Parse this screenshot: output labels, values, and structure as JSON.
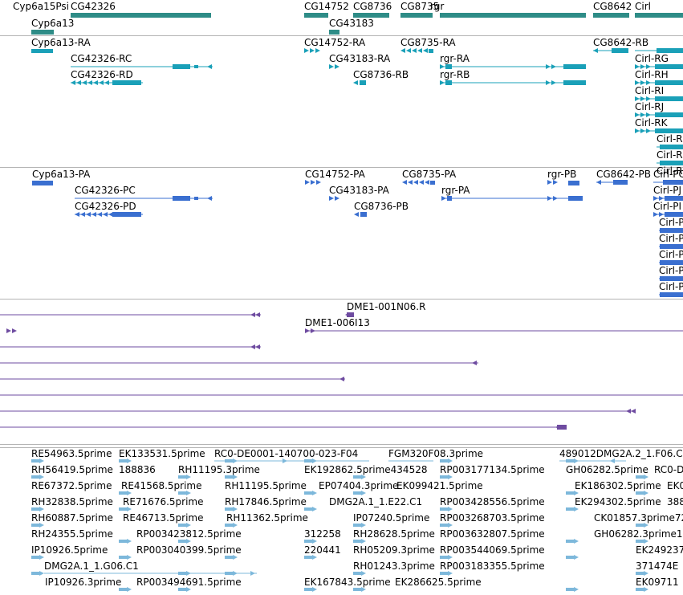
{
  "colors": {
    "gene": "#2e8c87",
    "transcript_mrna": "#1aa0b8",
    "transcript_protein": "#3a6fd0",
    "clone": "#6e4ba0",
    "est": "#7db8db",
    "separator": "#b4b4b4",
    "background": "#ffffff"
  },
  "tracks": [
    {
      "id": "genes",
      "features": [
        {
          "label": "Cyp6a15Psi"
        },
        {
          "label": "CG42326"
        },
        {
          "label": "Cyp6a13"
        },
        {
          "label": "CG14752"
        },
        {
          "label": "CG8736"
        },
        {
          "label": "CG43183"
        },
        {
          "label": "CG8735"
        },
        {
          "label": "rgr"
        },
        {
          "label": "CG8642"
        },
        {
          "label": "Cirl"
        }
      ]
    },
    {
      "id": "transcripts-mrna",
      "features": [
        {
          "label": "Cyp6a13-RA"
        },
        {
          "label": "CG42326-RC"
        },
        {
          "label": "CG42326-RD"
        },
        {
          "label": "CG14752-RA"
        },
        {
          "label": "CG43183-RA"
        },
        {
          "label": "CG8736-RB"
        },
        {
          "label": "CG8735-RA"
        },
        {
          "label": "rgr-RA"
        },
        {
          "label": "rgr-RB"
        },
        {
          "label": "CG8642-RB"
        },
        {
          "label": "Cirl-RG"
        },
        {
          "label": "Cirl-RH"
        },
        {
          "label": "Cirl-RI"
        },
        {
          "label": "Cirl-RJ"
        },
        {
          "label": "Cirl-RK"
        },
        {
          "label": "Cirl-R"
        },
        {
          "label": "Cirl-R"
        },
        {
          "label": "Cirl-R"
        }
      ]
    },
    {
      "id": "transcripts-protein",
      "features": [
        {
          "label": "Cyp6a13-PA"
        },
        {
          "label": "CG42326-PC"
        },
        {
          "label": "CG42326-PD"
        },
        {
          "label": "CG14752-PA"
        },
        {
          "label": "CG43183-PA"
        },
        {
          "label": "CG8736-PB"
        },
        {
          "label": "CG8735-PA"
        },
        {
          "label": "rgr-PA"
        },
        {
          "label": "rgr-PB"
        },
        {
          "label": "CG8642-PB"
        },
        {
          "label": "Cirl-PC"
        },
        {
          "label": "Cirl-PJ"
        },
        {
          "label": "Cirl-PI"
        },
        {
          "label": "Cirl-P"
        },
        {
          "label": "Cirl-P"
        },
        {
          "label": "Cirl-P"
        },
        {
          "label": "Cirl-P"
        },
        {
          "label": "Cirl-P"
        }
      ]
    },
    {
      "id": "clones",
      "features": [
        {
          "label": "DME1-001N06.R"
        },
        {
          "label": "DME1-006I13"
        }
      ]
    },
    {
      "id": "ests",
      "features": [
        {
          "label": "RE54963.5prime"
        },
        {
          "label": "EK133531.5prime"
        },
        {
          "label": "RC0-DE0001-140700-023-F04"
        },
        {
          "label": "FGM320F08.3prime"
        },
        {
          "label": "489012DMG2A.2_1.F06.C1"
        },
        {
          "label": "RH56419.5prime"
        },
        {
          "label": "188836"
        },
        {
          "label": "RH11195.3prime"
        },
        {
          "label": "EK192862.5prime434528"
        },
        {
          "label": "RP003177134.5prime"
        },
        {
          "label": "GH06282.5prime"
        },
        {
          "label": "RC0-D"
        },
        {
          "label": "RE67372.5prime"
        },
        {
          "label": "RE41568.5prime"
        },
        {
          "label": "RH11195.5prime"
        },
        {
          "label": "EP07404.3prime"
        },
        {
          "label": "EK099421.5prime"
        },
        {
          "label": "EK186302.5prime"
        },
        {
          "label": "EK0"
        },
        {
          "label": "RH32838.5prime"
        },
        {
          "label": "RE71676.5prime"
        },
        {
          "label": "RH17846.5prime"
        },
        {
          "label": "DMG2A.1_1.E22.C1"
        },
        {
          "label": "RP003428556.5prime"
        },
        {
          "label": "EK294302.5prime"
        },
        {
          "label": "388"
        },
        {
          "label": "RH60887.5prime"
        },
        {
          "label": "RE46713.5prime"
        },
        {
          "label": "RH11362.5prime"
        },
        {
          "label": "IP07240.5prime"
        },
        {
          "label": "RP003268703.5prime"
        },
        {
          "label": "CK01857.3prime72"
        },
        {
          "label": "RH24355.5prime"
        },
        {
          "label": "RP003423812.5prime"
        },
        {
          "label": "312258"
        },
        {
          "label": "RH28628.5prime"
        },
        {
          "label": "RP003632807.5prime"
        },
        {
          "label": "GH06282.3prime1"
        },
        {
          "label": "IP10926.5prime"
        },
        {
          "label": "RP003040399.5prime"
        },
        {
          "label": "220441"
        },
        {
          "label": "RH05209.3prime"
        },
        {
          "label": "RP003544069.5prime"
        },
        {
          "label": "EK249237"
        },
        {
          "label": "DMG2A.1_1.G06.C1"
        },
        {
          "label": "RH01243.3prime"
        },
        {
          "label": "RP003183355.5prime"
        },
        {
          "label": "371474E"
        },
        {
          "label": "IP10926.3prime"
        },
        {
          "label": "RP003494691.5prime"
        },
        {
          "label": "EK167843.5prime"
        },
        {
          "label": "EK286625.5prime"
        },
        {
          "label": "EK09711"
        }
      ]
    }
  ]
}
